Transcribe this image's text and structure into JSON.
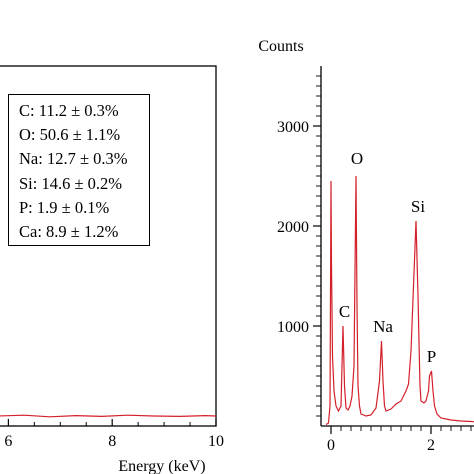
{
  "chart_data": [
    {
      "type": "line",
      "title": "",
      "xlabel": "Energy (keV)",
      "ylabel": "",
      "xlim": [
        5.8,
        10
      ],
      "x_ticks": [
        "6",
        "8",
        "10"
      ],
      "series": [
        {
          "x": [
            5.8,
            6.3,
            6.8,
            7.3,
            7.8,
            8.3,
            8.8,
            9.3,
            9.8,
            10.0
          ],
          "y": [
            10,
            12,
            8,
            11,
            9,
            12,
            10,
            9,
            11,
            10
          ]
        }
      ],
      "annotations": [
        "C: 11.2 ± 0.3%",
        "O: 50.6 ± 1.1%",
        "Na: 12.7 ± 0.3%",
        "Si: 14.6 ± 0.2%",
        "P: 1.9 ± 0.1%",
        "Ca: 8.9 ± 1.2%"
      ],
      "line_color": "#d4202a"
    },
    {
      "type": "line",
      "title": "",
      "xlabel": "",
      "ylabel": "Counts",
      "xlim": [
        -0.2,
        3.0
      ],
      "ylim": [
        0,
        3600
      ],
      "x_ticks": [
        "0",
        "2"
      ],
      "y_ticks": [
        "1000",
        "2000",
        "3000"
      ],
      "series": [
        {
          "x": [
            -0.1,
            -0.05,
            -0.02,
            0.0,
            0.01,
            0.03,
            0.06,
            0.1,
            0.15,
            0.2,
            0.24,
            0.27,
            0.3,
            0.34,
            0.38,
            0.42,
            0.46,
            0.5,
            0.52,
            0.54,
            0.57,
            0.6,
            0.7,
            0.8,
            0.9,
            0.97,
            1.01,
            1.04,
            1.07,
            1.1,
            1.2,
            1.3,
            1.4,
            1.5,
            1.55,
            1.6,
            1.65,
            1.7,
            1.74,
            1.78,
            1.8,
            1.86,
            1.9,
            1.95,
            1.97,
            2.01,
            2.04,
            2.07,
            2.12,
            2.2,
            2.4,
            2.6,
            2.8,
            2.95
          ],
          "y": [
            15,
            30,
            200,
            2450,
            1600,
            700,
            350,
            200,
            150,
            200,
            1000,
            400,
            180,
            160,
            200,
            300,
            600,
            2500,
            1200,
            400,
            200,
            120,
            100,
            110,
            180,
            450,
            850,
            450,
            200,
            150,
            170,
            220,
            250,
            350,
            420,
            750,
            1400,
            2050,
            1300,
            400,
            250,
            230,
            250,
            350,
            500,
            550,
            350,
            200,
            120,
            80,
            60,
            50,
            45,
            40
          ]
        }
      ],
      "peak_labels": [
        {
          "label": "C",
          "x": 0.27,
          "y": 1010
        },
        {
          "label": "O",
          "x": 0.52,
          "y": 2540
        },
        {
          "label": "Na",
          "x": 1.04,
          "y": 860
        },
        {
          "label": "Si",
          "x": 1.74,
          "y": 2060
        },
        {
          "label": "P",
          "x": 2.01,
          "y": 560
        }
      ],
      "line_color": "#d4202a"
    }
  ]
}
